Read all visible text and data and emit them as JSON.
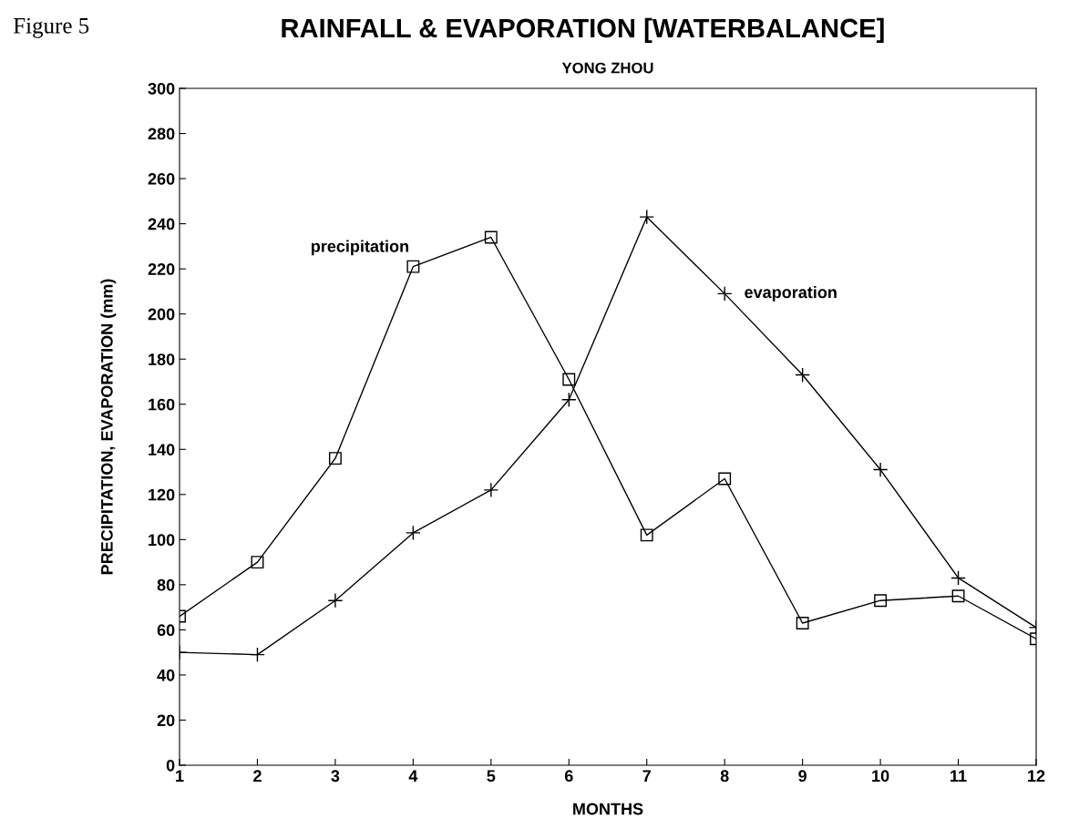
{
  "chart_data": {
    "type": "line",
    "title": "RAINFALL & EVAPORATION [WATERBALANCE]",
    "subtitle": "YONG ZHOU",
    "xlabel": "MONTHS",
    "ylabel": "PRECIPITATION, EVAPORATION (mm)",
    "annotations": [
      "Figure 5"
    ],
    "x": [
      1,
      2,
      3,
      4,
      5,
      6,
      7,
      8,
      9,
      10,
      11,
      12
    ],
    "series": [
      {
        "name": "precipitation",
        "color": "#000000",
        "marker": "square",
        "values": [
          66,
          90,
          136,
          221,
          234,
          171,
          102,
          127,
          63,
          73,
          75,
          56
        ]
      },
      {
        "name": "evaporation",
        "color": "#000000",
        "marker": "cross",
        "values": [
          50,
          49,
          73,
          103,
          122,
          162,
          243,
          209,
          173,
          131,
          83,
          61
        ]
      }
    ],
    "xlim": [
      1,
      12
    ],
    "xticks": [
      1,
      2,
      3,
      4,
      5,
      6,
      7,
      8,
      9,
      10,
      11,
      12
    ],
    "ylim": [
      0,
      300
    ],
    "yticks": [
      0,
      20,
      40,
      60,
      80,
      100,
      120,
      140,
      160,
      180,
      200,
      220,
      240,
      260,
      280,
      300
    ],
    "grid": false,
    "legend": false,
    "line_style": "solid"
  }
}
